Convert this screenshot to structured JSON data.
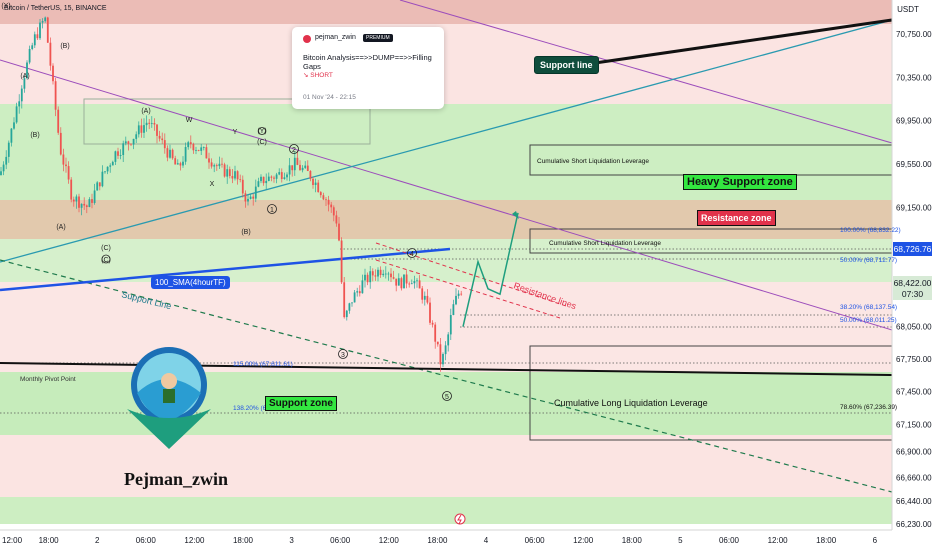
{
  "header": {
    "symbol_title": "Bitcoin / TetherUS, 15, BINANCE",
    "currency": "USDT"
  },
  "idea_card": {
    "author": "pejman_zwin",
    "badge": "PREMIUM",
    "title": "Bitcoin Analysis==>>DUMP==>>Filling Gaps",
    "direction": "SHORT",
    "date": "01 Nov '24 - 22:15"
  },
  "price_labels": {
    "current_close": "68,726.76",
    "last_price": "68,422.00",
    "countdown": "07:30"
  },
  "annotations": {
    "support_line_top": "Support line",
    "heavy_support": "Heavy Support zone",
    "resistance_zone": "Resistance zone",
    "support_zone": "Support zone",
    "sma": "100_SMA(4hourTF)",
    "support_line_diag": "Support Line",
    "resistance_lines": "Resistance lines",
    "monthly_pivot": "Monthly Pivot Point",
    "cum_short_1": "Cumulative Short Liquidation Leverage",
    "cum_short_2": "Cumulative Short Liquidation Leverage",
    "cum_long": "Cumulative Long Liquidation Leverage",
    "logo_name": "Pejman_zwin"
  },
  "fib_labels": {
    "f100": "100.00% (68,832.22)",
    "f50a": "50.00% (68,712.77)",
    "f382": "38.20% (68,137.54)",
    "f50b": "50.00% (68,011.25)",
    "f786": "78.60% (67,236.39)",
    "f115": "115.00% (67,611.61)",
    "f1382": "138.20% (67"
  },
  "wave_labels": [
    "(A)",
    "(B)",
    "(C)",
    "(A)",
    "(B)",
    "(C)",
    "(A)",
    "(B)",
    "(C)",
    "W",
    "X",
    "Y",
    "(Y)",
    "(X)",
    "1",
    "2",
    "3",
    "4",
    "5"
  ],
  "colors": {
    "support_band": "#cdeec2",
    "resistance_band": "#e2c9ad",
    "bull": "#26a69a",
    "bear": "#ef5350",
    "sma": "#1e53e5",
    "purple": "#9c4dbb",
    "teal_line": "#2a9ab0",
    "label_green": "#33e640",
    "label_red": "#e1324b",
    "label_dark": "#0f4d3c",
    "price_blue": "#1e53e5"
  },
  "chart_data": {
    "type": "candlestick",
    "title": "Bitcoin / TetherUS, 15, BINANCE",
    "y_axis": {
      "ticks": [
        70750,
        70350,
        69950,
        69550,
        69150,
        68050,
        67750,
        67450,
        67150,
        66900,
        66660,
        66440,
        66230
      ],
      "tick_labels": [
        "70,750.00",
        "70,350.00",
        "69,950.00",
        "69,550.00",
        "69,150.00",
        "68,050.00",
        "67,750.00",
        "67,450.00",
        "67,150.00",
        "66,900.00",
        "66,660.00",
        "66,440.00",
        "66,230.00"
      ]
    },
    "x_axis": {
      "tick_labels": [
        "12:00",
        "18:00",
        "2",
        "06:00",
        "12:00",
        "18:00",
        "3",
        "06:00",
        "12:00",
        "18:00",
        "4",
        "06:00",
        "12:00",
        "18:00",
        "5",
        "06:00",
        "12:00",
        "18:00",
        "6"
      ]
    },
    "price_path": [
      [
        0,
        69450
      ],
      [
        10,
        69800
      ],
      [
        22,
        70300
      ],
      [
        34,
        70700
      ],
      [
        45,
        70900
      ],
      [
        60,
        69700
      ],
      [
        72,
        69250
      ],
      [
        88,
        69150
      ],
      [
        100,
        69400
      ],
      [
        115,
        69650
      ],
      [
        128,
        69750
      ],
      [
        148,
        69950
      ],
      [
        165,
        69700
      ],
      [
        178,
        69500
      ],
      [
        190,
        69750
      ],
      [
        205,
        69650
      ],
      [
        220,
        69500
      ],
      [
        235,
        69450
      ],
      [
        248,
        69200
      ],
      [
        262,
        69400
      ],
      [
        278,
        69450
      ],
      [
        295,
        69550
      ],
      [
        310,
        69450
      ],
      [
        325,
        69250
      ],
      [
        338,
        69000
      ],
      [
        344,
        68100
      ],
      [
        352,
        68300
      ],
      [
        362,
        68450
      ],
      [
        375,
        68550
      ],
      [
        386,
        68600
      ],
      [
        398,
        68450
      ],
      [
        412,
        68500
      ],
      [
        425,
        68300
      ],
      [
        435,
        67950
      ],
      [
        441,
        67700
      ],
      [
        447,
        67900
      ],
      [
        452,
        68200
      ],
      [
        458,
        68350
      ],
      [
        463,
        68420
      ]
    ],
    "projection_path": [
      [
        463,
        68050
      ],
      [
        478,
        68650
      ],
      [
        488,
        68400
      ],
      [
        500,
        68350
      ],
      [
        518,
        69100
      ]
    ],
    "last_price": 68422.0,
    "current_close_level": 68726.76,
    "zones": [
      {
        "name": "Heavy Support zone",
        "from": 69950,
        "to": 69150,
        "kind": "support"
      },
      {
        "name": "Resistance zone",
        "from": 69150,
        "to": 68880,
        "kind": "resistance"
      },
      {
        "name": "Support zone",
        "from": 67500,
        "to": 67150,
        "kind": "support"
      }
    ],
    "fibonacci": [
      {
        "ratio": "100.00%",
        "price": 68832.22
      },
      {
        "ratio": "50.00%",
        "price": 68712.77
      },
      {
        "ratio": "38.20%",
        "price": 68137.54
      },
      {
        "ratio": "50.00%",
        "price": 68011.25
      },
      {
        "ratio": "78.60%",
        "price": 67236.39
      },
      {
        "ratio": "115.00%",
        "price": 67611.61
      }
    ],
    "indicator": "100_SMA(4hourTF)"
  }
}
